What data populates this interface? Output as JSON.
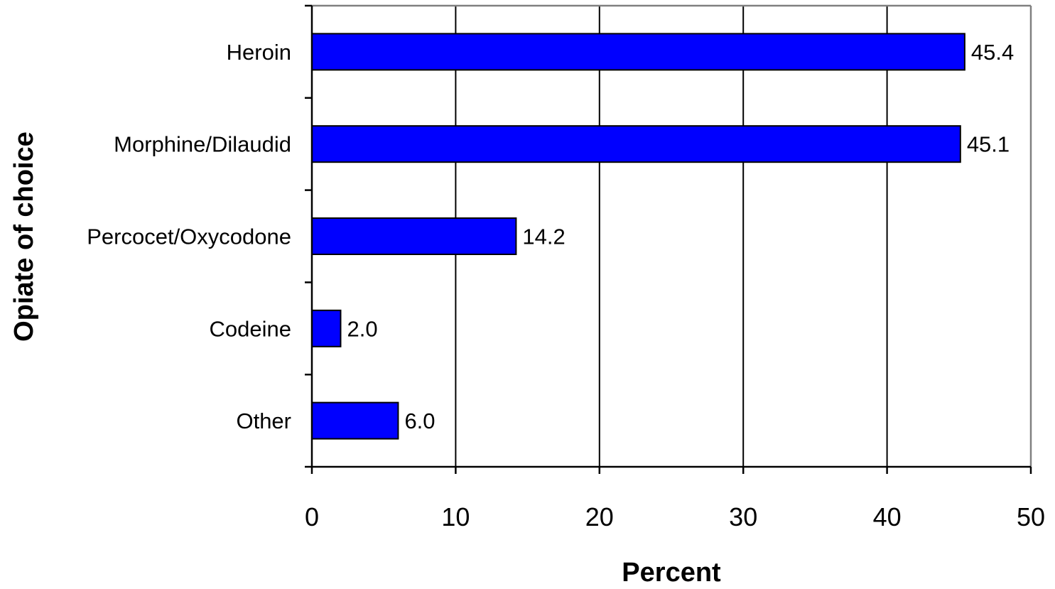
{
  "chart_data": {
    "type": "bar",
    "orientation": "horizontal",
    "categories": [
      "Heroin",
      "Morphine/Dilaudid",
      "Percocet/Oxycodone",
      "Codeine",
      "Other"
    ],
    "values": [
      45.4,
      45.1,
      14.2,
      2.0,
      6.0
    ],
    "data_labels": [
      "45.4",
      "45.1",
      "14.2",
      "2.0",
      "6.0"
    ],
    "xlabel": "Percent",
    "ylabel": "Opiate of choice",
    "xlim": [
      0,
      50
    ],
    "xticks": [
      "0",
      "10",
      "20",
      "30",
      "40",
      "50"
    ],
    "grid": "vertical",
    "legend": "none",
    "colors": {
      "bar": "#0000ff",
      "bar_border": "#000000",
      "grid": "#000000",
      "frame": "#808080"
    }
  }
}
